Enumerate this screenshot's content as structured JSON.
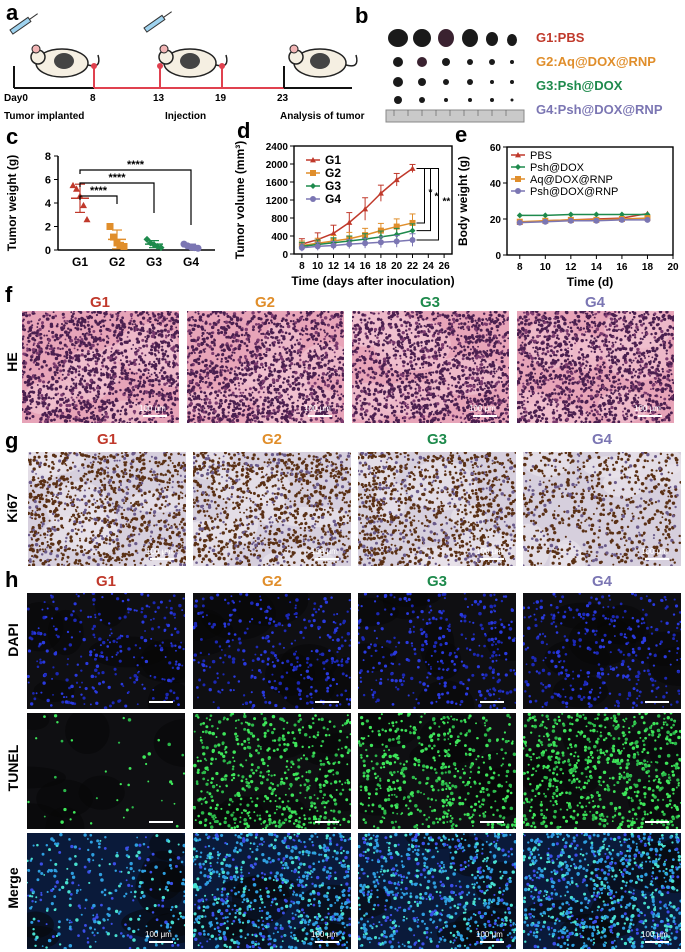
{
  "panels": {
    "a": "a",
    "b": "b",
    "c": "c",
    "d": "d",
    "e": "e",
    "f": "f",
    "g": "g",
    "h": "h"
  },
  "timeline": {
    "days": [
      "Day0",
      "8",
      "13",
      "19",
      "23"
    ],
    "labels": [
      "Tumor implanted",
      "Injection",
      "Analysis of tumor"
    ]
  },
  "photo_legend": [
    {
      "text": "G1:PBS",
      "color": "#c0392b"
    },
    {
      "text": "G2:Aq@DOX@RNP",
      "color": "#e08e2b"
    },
    {
      "text": "G3:Psh@DOX",
      "color": "#1e8a4c"
    },
    {
      "text": "G4:Psh@DOX@RNP",
      "color": "#7b76b3"
    }
  ],
  "groups": [
    {
      "label": "G1",
      "color": "#c0392b"
    },
    {
      "label": "G2",
      "color": "#e08e2b"
    },
    {
      "label": "G3",
      "color": "#1e8a4c"
    },
    {
      "label": "G4",
      "color": "#7b76b3"
    }
  ],
  "row_labels": {
    "f": "HE",
    "g": "Ki67",
    "h1": "DAPI",
    "h2": "TUNEL",
    "h3": "Merge"
  },
  "scalebar": "100 μm",
  "chart_data": [
    {
      "id": "c",
      "type": "scatter",
      "ylabel": "Tumor weight (g)",
      "ylim": [
        0,
        8
      ],
      "yticks": [
        0,
        2,
        4,
        6,
        8
      ],
      "categories": [
        "G1",
        "G2",
        "G3",
        "G4"
      ],
      "points": [
        [
          5.5,
          5.2,
          4.6,
          3.8,
          2.6
        ],
        [
          2.0,
          1.1,
          0.6,
          0.4,
          0.3
        ],
        [
          0.9,
          0.6,
          0.45,
          0.3,
          0.2
        ],
        [
          0.5,
          0.35,
          0.25,
          0.2,
          0.15
        ]
      ],
      "mean": [
        4.4,
        0.9,
        0.5,
        0.3
      ],
      "sd": [
        1.2,
        0.8,
        0.3,
        0.2
      ],
      "significance": [
        "****",
        "****",
        "****"
      ],
      "colors": [
        "#c0392b",
        "#e08e2b",
        "#1e8a4c",
        "#7b76b3"
      ]
    },
    {
      "id": "d",
      "type": "line",
      "xlabel": "Time (days after inoculation)",
      "ylabel": "Tumor volume (mm³)",
      "xlim": [
        7,
        27
      ],
      "ylim": [
        0,
        2400
      ],
      "xticks": [
        8,
        10,
        12,
        14,
        16,
        18,
        20,
        22,
        24,
        26
      ],
      "yticks": [
        0,
        400,
        800,
        1200,
        1600,
        2000,
        2400
      ],
      "x": [
        8,
        10,
        12,
        14,
        16,
        18,
        20,
        22
      ],
      "series": [
        {
          "name": "G1",
          "color": "#c0392b",
          "marker": "triangle",
          "values": [
            220,
            320,
            460,
            700,
            1000,
            1350,
            1650,
            1900
          ],
          "err": [
            120,
            150,
            180,
            220,
            250,
            180,
            140,
            90
          ]
        },
        {
          "name": "G2",
          "color": "#e08e2b",
          "marker": "square",
          "values": [
            190,
            240,
            290,
            340,
            420,
            520,
            610,
            690
          ],
          "err": [
            100,
            110,
            120,
            140,
            150,
            160,
            170,
            200
          ]
        },
        {
          "name": "G3",
          "color": "#1e8a4c",
          "marker": "diamond",
          "values": [
            170,
            210,
            250,
            290,
            330,
            380,
            430,
            520
          ],
          "err": [
            90,
            100,
            110,
            110,
            120,
            130,
            140,
            150
          ]
        },
        {
          "name": "G4",
          "color": "#7b76b3",
          "marker": "circle",
          "values": [
            140,
            170,
            190,
            220,
            240,
            260,
            280,
            310
          ],
          "err": [
            80,
            90,
            90,
            100,
            110,
            120,
            130,
            140
          ]
        }
      ],
      "significance": [
        "*",
        "*",
        "**"
      ]
    },
    {
      "id": "e",
      "type": "line",
      "xlabel": "Time (d)",
      "ylabel": "Body weight (g)",
      "xlim": [
        7,
        20
      ],
      "ylim": [
        0,
        60
      ],
      "xticks": [
        8,
        10,
        12,
        14,
        16,
        18,
        20
      ],
      "yticks": [
        0,
        20,
        40,
        60
      ],
      "x": [
        8,
        10,
        12,
        14,
        16,
        18
      ],
      "series": [
        {
          "name": "PBS",
          "color": "#c0392b",
          "marker": "triangle",
          "values": [
            18,
            19,
            19.5,
            20,
            20.5,
            23
          ]
        },
        {
          "name": "Psh@DOX",
          "color": "#1e8a4c",
          "marker": "diamond",
          "values": [
            22,
            22,
            22.5,
            22.5,
            22.5,
            22.5
          ]
        },
        {
          "name": "Aq@DOX@RNP",
          "color": "#e08e2b",
          "marker": "square",
          "values": [
            18.5,
            19,
            19.5,
            19.5,
            20,
            20.5
          ]
        },
        {
          "name": "Psh@DOX@RNP",
          "color": "#7b76b3",
          "marker": "circle",
          "values": [
            18,
            18.5,
            19,
            19,
            19.5,
            19.5
          ]
        }
      ]
    }
  ]
}
